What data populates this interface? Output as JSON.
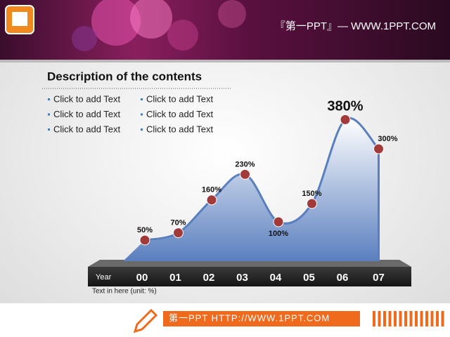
{
  "header": {
    "brand": "『第一PPT』— WWW.1PPT.COM"
  },
  "slide": {
    "heading": "Description  of the contents",
    "bullet_columns": [
      [
        "Click to add Text",
        "Click to add Text",
        "Click to add Text"
      ],
      [
        "Click to add Text",
        "Click to add Text",
        "Click to add Text"
      ]
    ]
  },
  "chart_data": {
    "type": "area",
    "x_label": "Year",
    "categories": [
      "00",
      "01",
      "02",
      "03",
      "04",
      "05",
      "06",
      "07"
    ],
    "values": [
      50,
      70,
      160,
      230,
      100,
      150,
      380,
      300
    ],
    "value_labels": [
      "50%",
      "70%",
      "160%",
      "230%",
      "100%",
      "150%",
      "380%",
      "300%"
    ],
    "color": "#5a7fbf",
    "marker_color": "#a33a3a",
    "note": "Text in here  (unit: %)"
  },
  "footer": {
    "text": "第一PPT HTTP://WWW.1PPT.COM"
  }
}
